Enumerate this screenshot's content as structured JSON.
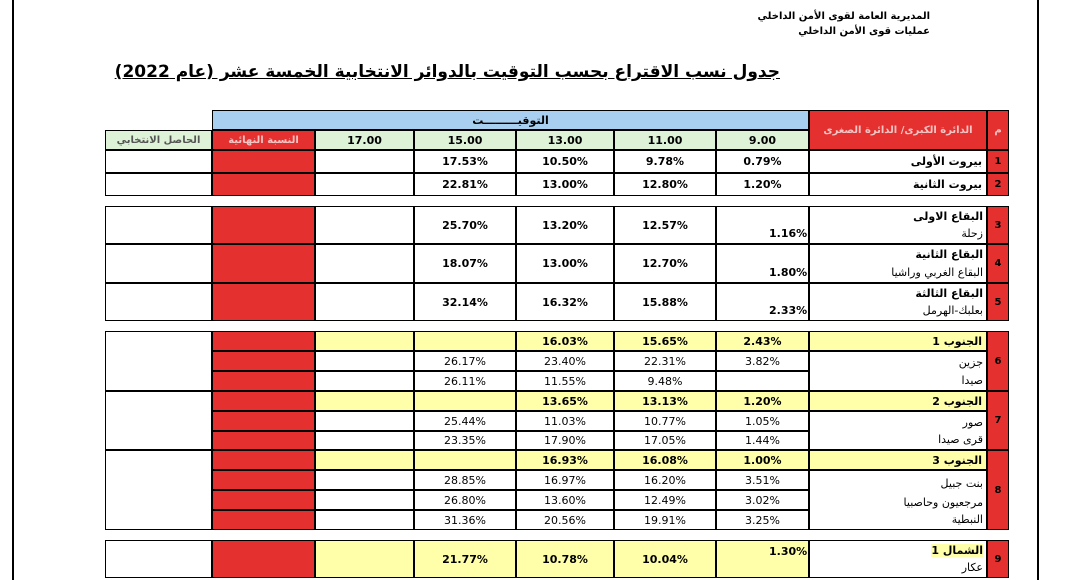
{
  "header": {
    "org_line1": "المديرية العامة لقوى الأمن الداخلي",
    "org_line2": "عمليات قوى الأمن الداخلي",
    "title": "جدول نسب الاقتراع بحسب التوقيت بالدوائر الانتخابية الخمسة عشر (عام 2022)"
  },
  "table": {
    "col_m": "م",
    "col_district": "الدائرة الكبرى/ الدائرة الصغرى",
    "timing_label": "التوقيـــــــــت",
    "times": [
      "9.00",
      "11.00",
      "13.00",
      "15.00",
      "17.00"
    ],
    "col_final": "النسبة النهائية",
    "col_quotient": "الحاصل الانتخابي",
    "rows": {
      "r1": {
        "num": "1",
        "name": "بيروت الأولى",
        "t9": "0.79%",
        "t11": "9.78%",
        "t13": "10.50%",
        "t15": "17.53%"
      },
      "r2": {
        "num": "2",
        "name": "بيروت الثانية",
        "t9": "1.20%",
        "t11": "12.80%",
        "t13": "13.00%",
        "t15": "22.81%"
      },
      "r3": {
        "num": "3",
        "name": "البقاع الاولى",
        "sub": "زحلة",
        "t9": "1.16%",
        "t11": "12.57%",
        "t13": "13.20%",
        "t15": "25.70%"
      },
      "r4": {
        "num": "4",
        "name": "البقاع الثانية",
        "sub": "البقاع الغربي وراشيا",
        "t9": "1.80%",
        "t11": "12.70%",
        "t13": "13.00%",
        "t15": "18.07%"
      },
      "r5": {
        "num": "5",
        "name": "البقاع الثالثة",
        "sub": "بعلبك-الهرمل",
        "t9": "2.33%",
        "t11": "15.88%",
        "t13": "16.32%",
        "t15": "32.14%"
      },
      "r6": {
        "num": "6",
        "name": "الجنوب 1",
        "t9": "2.43%",
        "t11": "15.65%",
        "t13": "16.03%",
        "subs": [
          {
            "name": "جزين",
            "t9": "3.82%",
            "t11": "22.31%",
            "t13": "23.40%",
            "t15": "26.17%"
          },
          {
            "name": "صيدا",
            "t9": "",
            "t11": "9.48%",
            "t13": "11.55%",
            "t15": "26.11%"
          }
        ]
      },
      "r7": {
        "num": "7",
        "name": "الجنوب 2",
        "t9": "1.20%",
        "t11": "13.13%",
        "t13": "13.65%",
        "subs": [
          {
            "name": "صور",
            "t9": "1.05%",
            "t11": "10.77%",
            "t13": "11.03%",
            "t15": "25.44%"
          },
          {
            "name": "قرى صيدا",
            "t9": "1.44%",
            "t11": "17.05%",
            "t13": "17.90%",
            "t15": "23.35%"
          }
        ]
      },
      "r8": {
        "num": "8",
        "name": "الجنوب 3",
        "t9": "1.00%",
        "t11": "16.08%",
        "t13": "16.93%",
        "subs": [
          {
            "name": "بنت جبيل",
            "t9": "3.51%",
            "t11": "16.20%",
            "t13": "16.97%",
            "t15": "28.85%"
          },
          {
            "name": "مرجعيون وحاصبيا",
            "t9": "3.02%",
            "t11": "12.49%",
            "t13": "13.60%",
            "t15": "26.80%"
          },
          {
            "name": "النبطية",
            "t9": "3.25%",
            "t11": "19.91%",
            "t13": "20.56%",
            "t15": "31.36%"
          }
        ]
      },
      "r9": {
        "num": "9",
        "name": "الشمال 1",
        "sub": "عكار",
        "t9": "1.30%",
        "t11": "10.04%",
        "t13": "10.78%",
        "t15": "21.77%"
      }
    }
  }
}
